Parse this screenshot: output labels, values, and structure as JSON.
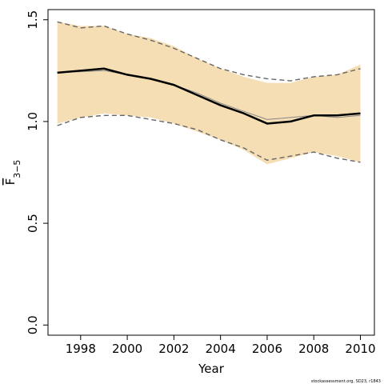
{
  "chart_data": {
    "type": "line",
    "xlabel": "Year",
    "ylabel": {
      "base": "F",
      "subscript": "3−5"
    },
    "xlim": [
      1996.6,
      2010.6
    ],
    "ylim": [
      -0.05,
      1.55
    ],
    "x_ticks": [
      1998,
      2000,
      2002,
      2004,
      2006,
      2008,
      2010
    ],
    "y_ticks": [
      0.0,
      0.5,
      1.0,
      1.5
    ],
    "x_tick_labels": [
      "1998",
      "2000",
      "2002",
      "2004",
      "2006",
      "2008",
      "2010"
    ],
    "y_tick_labels": [
      "0.0",
      "0.5",
      "1.0",
      "1.5"
    ],
    "x": [
      1997,
      1998,
      1999,
      2000,
      2001,
      2002,
      2003,
      2004,
      2005,
      2006,
      2007,
      2008,
      2009,
      2010
    ],
    "band": {
      "upper": [
        1.49,
        1.47,
        1.47,
        1.43,
        1.41,
        1.37,
        1.31,
        1.26,
        1.22,
        1.19,
        1.19,
        1.22,
        1.23,
        1.28
      ],
      "lower": [
        0.99,
        1.02,
        1.04,
        1.03,
        1.02,
        0.99,
        0.95,
        0.91,
        0.86,
        0.79,
        0.82,
        0.85,
        0.83,
        0.8
      ],
      "color": "#f5deb3"
    },
    "series": [
      {
        "role": "estimate",
        "values": [
          1.24,
          1.25,
          1.26,
          1.23,
          1.21,
          1.18,
          1.13,
          1.08,
          1.04,
          0.99,
          1.0,
          1.03,
          1.03,
          1.04
        ],
        "color": "#000000",
        "style": "solid-thick"
      },
      {
        "role": "retro-estimate",
        "values": [
          1.24,
          1.245,
          1.25,
          1.23,
          1.21,
          1.18,
          1.14,
          1.09,
          1.05,
          1.01,
          1.02,
          1.03,
          1.02,
          1.03
        ],
        "color": "#888888",
        "style": "solid-thin"
      },
      {
        "role": "retro-upper",
        "values": [
          1.49,
          1.46,
          1.47,
          1.43,
          1.4,
          1.36,
          1.31,
          1.26,
          1.23,
          1.21,
          1.2,
          1.22,
          1.23,
          1.26
        ],
        "color": "#666666",
        "style": "dashed"
      },
      {
        "role": "retro-lower",
        "values": [
          0.98,
          1.02,
          1.03,
          1.03,
          1.01,
          0.99,
          0.96,
          0.91,
          0.87,
          0.81,
          0.83,
          0.85,
          0.82,
          0.8
        ],
        "color": "#666666",
        "style": "dashed"
      }
    ],
    "grid": false,
    "credit": "stockassessment.org, SD23, r1843"
  }
}
